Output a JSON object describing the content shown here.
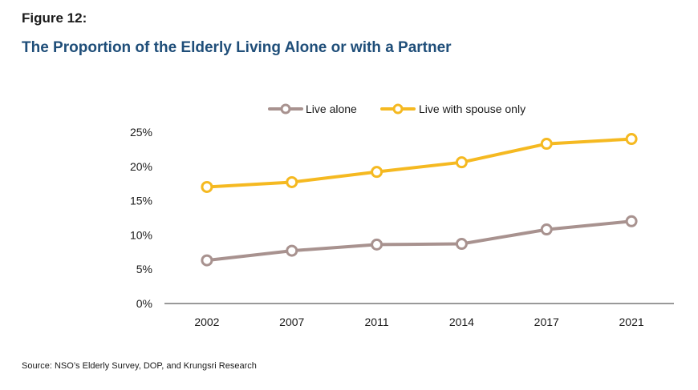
{
  "header": {
    "figure_label": "Figure 12:",
    "title": "The Proportion of the Elderly Living Alone or with a Partner"
  },
  "footer": {
    "source": "Source: NSO’s Elderly Survey, DOP, and Krungsri Research"
  },
  "colors": {
    "live_alone": "#a8928f",
    "live_with_spouse": "#f5b921",
    "axis": "#333333",
    "title": "#1f4e79"
  },
  "chart_data": {
    "type": "line",
    "title": "The Proportion of the Elderly Living Alone or with a Partner",
    "xlabel": "",
    "ylabel": "",
    "x": [
      "2002",
      "2007",
      "2011",
      "2014",
      "2017",
      "2021"
    ],
    "ylim": [
      0,
      25
    ],
    "yticks": [
      "0%",
      "5%",
      "10%",
      "15%",
      "20%",
      "25%"
    ],
    "grid": false,
    "legend_position": "top-center",
    "series": [
      {
        "name": "Live alone",
        "values": [
          6.3,
          7.7,
          8.6,
          8.7,
          10.8,
          12.0
        ]
      },
      {
        "name": "Live with spouse only",
        "values": [
          17.0,
          17.7,
          19.2,
          20.6,
          23.3,
          24.0
        ]
      }
    ]
  }
}
